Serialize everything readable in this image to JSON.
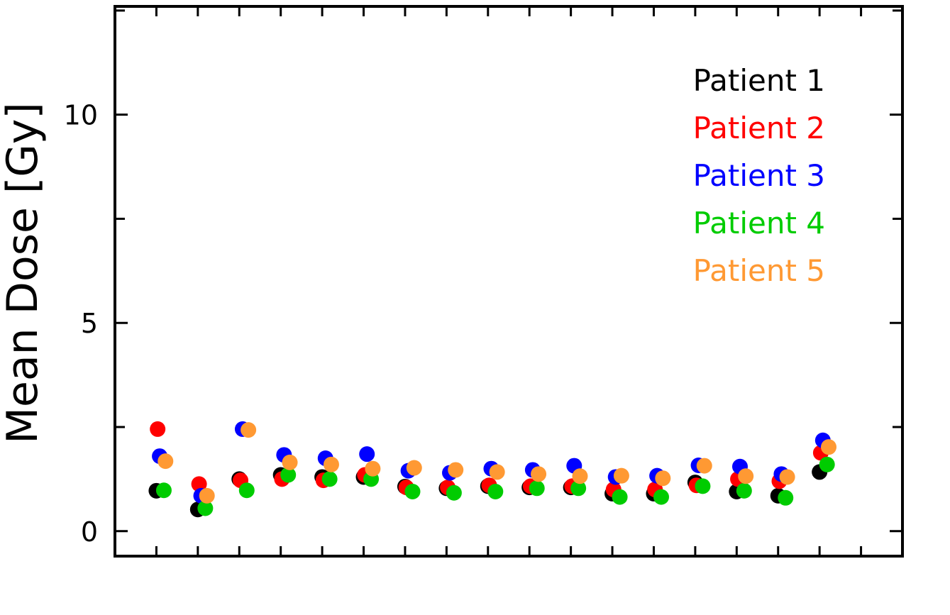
{
  "chart_data": {
    "type": "scatter",
    "ylabel": "Mean Dose [Gy]",
    "ylim": [
      -0.6,
      12.6
    ],
    "xlim": [
      0,
      19
    ],
    "y_ticks": [
      0,
      5,
      10
    ],
    "y_tick_labels": [
      "0",
      "5",
      "10"
    ],
    "x_tick_count": 19,
    "legend_position": "top-right",
    "grid": false,
    "series": [
      {
        "name": "Patient 1",
        "color": "#000000",
        "x_offset": 0.0,
        "values": [
          0.97,
          0.52,
          1.25,
          1.35,
          1.3,
          1.3,
          1.07,
          1.03,
          1.08,
          1.05,
          1.05,
          0.9,
          0.9,
          1.17,
          0.95,
          0.85,
          1.42
        ]
      },
      {
        "name": "Patient 2",
        "color": "#ff0000",
        "x_offset": 0.03,
        "values": [
          2.45,
          1.13,
          1.22,
          1.25,
          1.22,
          1.35,
          1.05,
          1.05,
          1.1,
          1.08,
          1.08,
          1.0,
          1.0,
          1.1,
          1.25,
          1.2,
          1.88
        ]
      },
      {
        "name": "Patient 3",
        "color": "#0000ff",
        "x_offset": 0.08,
        "values": [
          1.8,
          0.85,
          2.45,
          1.83,
          1.75,
          1.85,
          1.45,
          1.4,
          1.5,
          1.47,
          1.57,
          1.3,
          1.33,
          1.58,
          1.55,
          1.37,
          2.18
        ]
      },
      {
        "name": "Patient 4",
        "color": "#00cc00",
        "x_offset": 0.18,
        "values": [
          0.98,
          0.55,
          0.98,
          1.35,
          1.25,
          1.25,
          0.95,
          0.92,
          0.95,
          1.03,
          1.03,
          0.82,
          0.82,
          1.08,
          0.97,
          0.8,
          1.6
        ]
      },
      {
        "name": "Patient 5",
        "color": "#ff9933",
        "x_offset": 0.22,
        "values": [
          1.68,
          0.85,
          2.43,
          1.65,
          1.6,
          1.5,
          1.52,
          1.47,
          1.42,
          1.37,
          1.32,
          1.33,
          1.27,
          1.57,
          1.32,
          1.3,
          2.02
        ]
      }
    ]
  }
}
